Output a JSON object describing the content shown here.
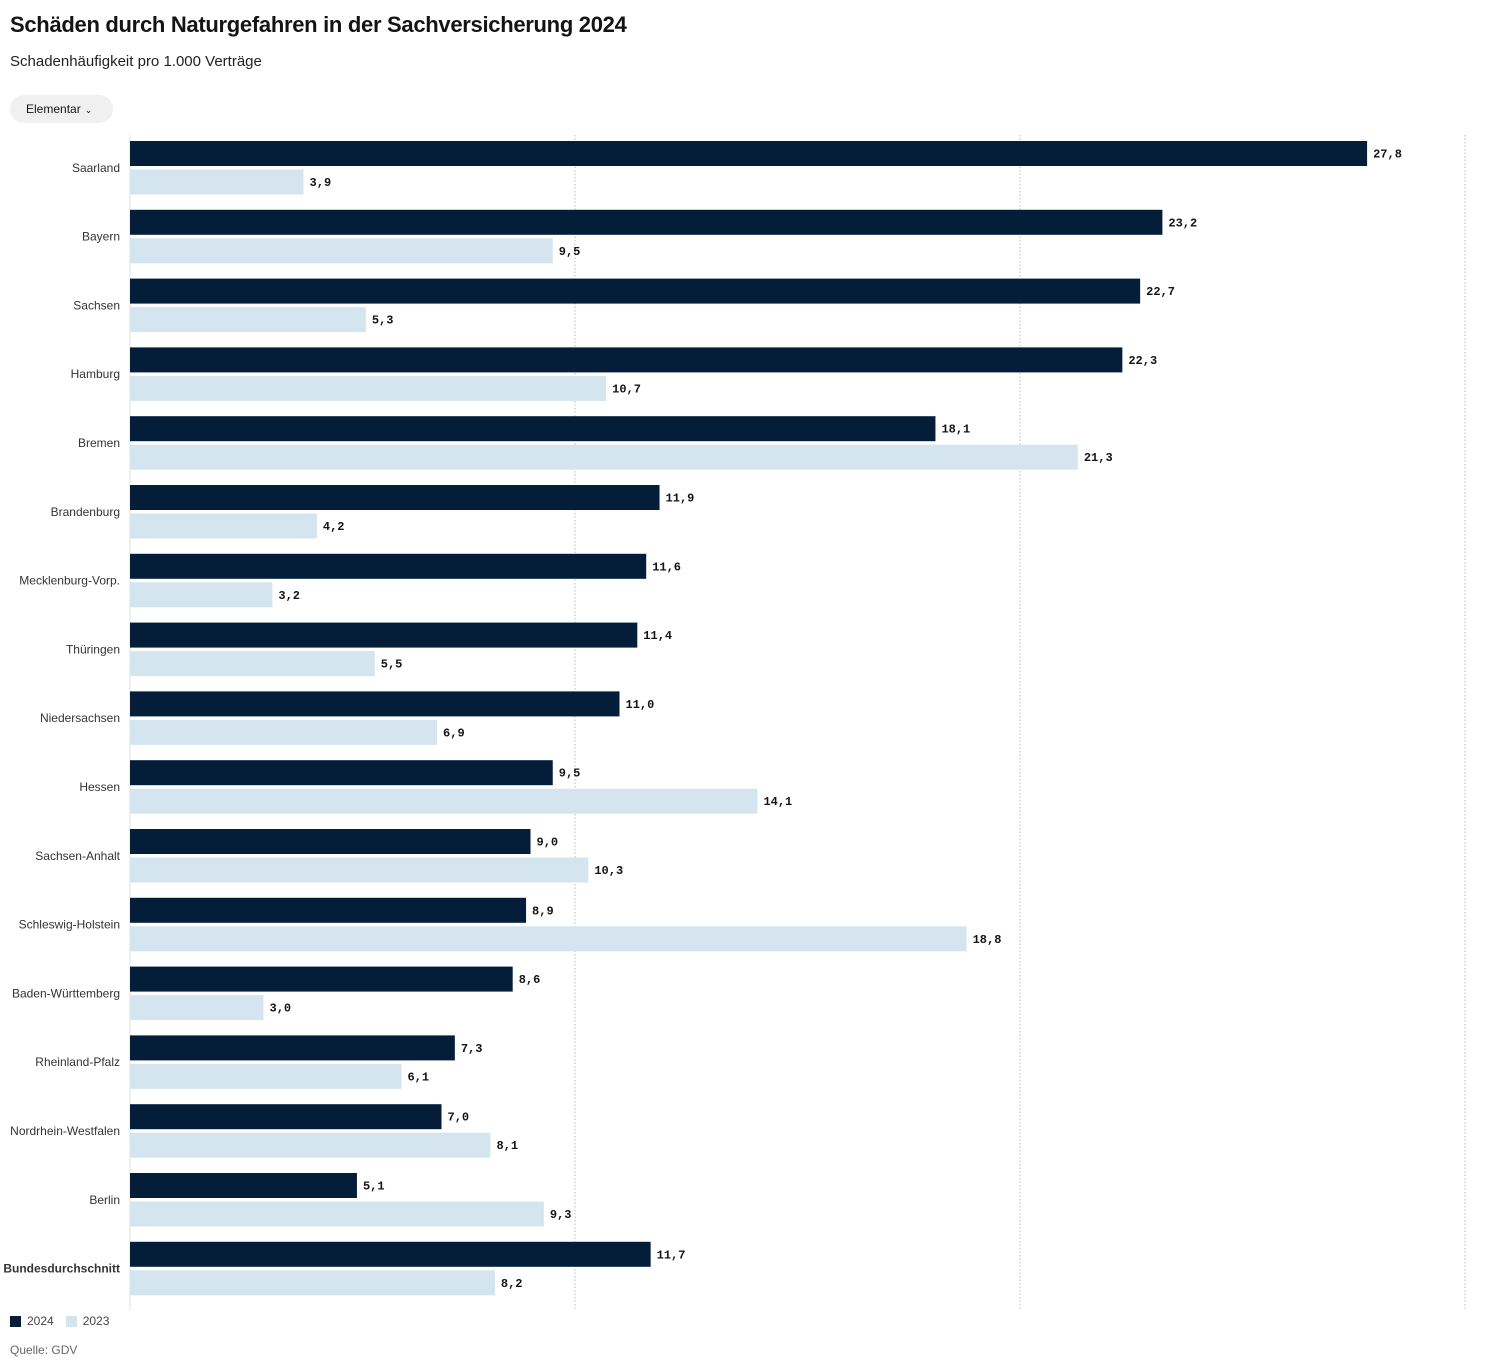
{
  "header": {
    "title": "Schäden durch Naturgefahren in der Sachversicherung 2024",
    "subtitle": "Schadenhäufigkeit pro 1.000 Verträge"
  },
  "filter": {
    "selected": "Elementar",
    "chevron_icon": "chevron-down-icon"
  },
  "colors": {
    "series_2024": "#041e3a",
    "series_2023": "#d5e5ef",
    "grid": "#bdbdbd",
    "text": "#141414"
  },
  "chart_data": {
    "type": "bar",
    "orientation": "horizontal",
    "categories": [
      "Saarland",
      "Bayern",
      "Sachsen",
      "Hamburg",
      "Bremen",
      "Brandenburg",
      "Mecklenburg-Vorp.",
      "Thüringen",
      "Niedersachsen",
      "Hessen",
      "Sachsen-Anhalt",
      "Schleswig-Holstein",
      "Baden-Württemberg",
      "Rheinland-Pfalz",
      "Nordrhein-Westfalen",
      "Berlin",
      "Bundesdurchschnitt"
    ],
    "emphasized_category": "Bundesdurchschnitt",
    "series": [
      {
        "name": "2024",
        "color": "#041e3a",
        "values": [
          27.8,
          23.2,
          22.7,
          22.3,
          18.1,
          11.9,
          11.6,
          11.4,
          11.0,
          9.5,
          9.0,
          8.9,
          8.6,
          7.3,
          7.0,
          5.1,
          11.7
        ],
        "labels": [
          "27,8",
          "23,2",
          "22,7",
          "22,3",
          "18,1",
          "11,9",
          "11,6",
          "11,4",
          "11,0",
          "9,5",
          "9,0",
          "8,9",
          "8,6",
          "7,3",
          "7,0",
          "5,1",
          "11,7"
        ]
      },
      {
        "name": "2023",
        "color": "#d5e5ef",
        "values": [
          3.9,
          9.5,
          5.3,
          10.7,
          21.3,
          4.2,
          3.2,
          5.5,
          6.9,
          14.1,
          10.3,
          18.8,
          3.0,
          6.1,
          8.1,
          9.3,
          8.2
        ],
        "labels": [
          "3,9",
          "9,5",
          "5,3",
          "10,7",
          "21,3",
          "4,2",
          "3,2",
          "5,5",
          "6,9",
          "14,1",
          "10,3",
          "18,8",
          "3,0",
          "6,1",
          "8,1",
          "9,3",
          "8,2"
        ]
      }
    ],
    "xlim": [
      0,
      30
    ],
    "xticks": [
      0,
      10,
      20,
      30
    ],
    "xtick_labels": [
      "0",
      "10",
      "20",
      "30"
    ],
    "grid": true,
    "legend_position": "bottom-left"
  },
  "legend": {
    "items": [
      "2024",
      "2023"
    ]
  },
  "source": "Quelle: GDV"
}
